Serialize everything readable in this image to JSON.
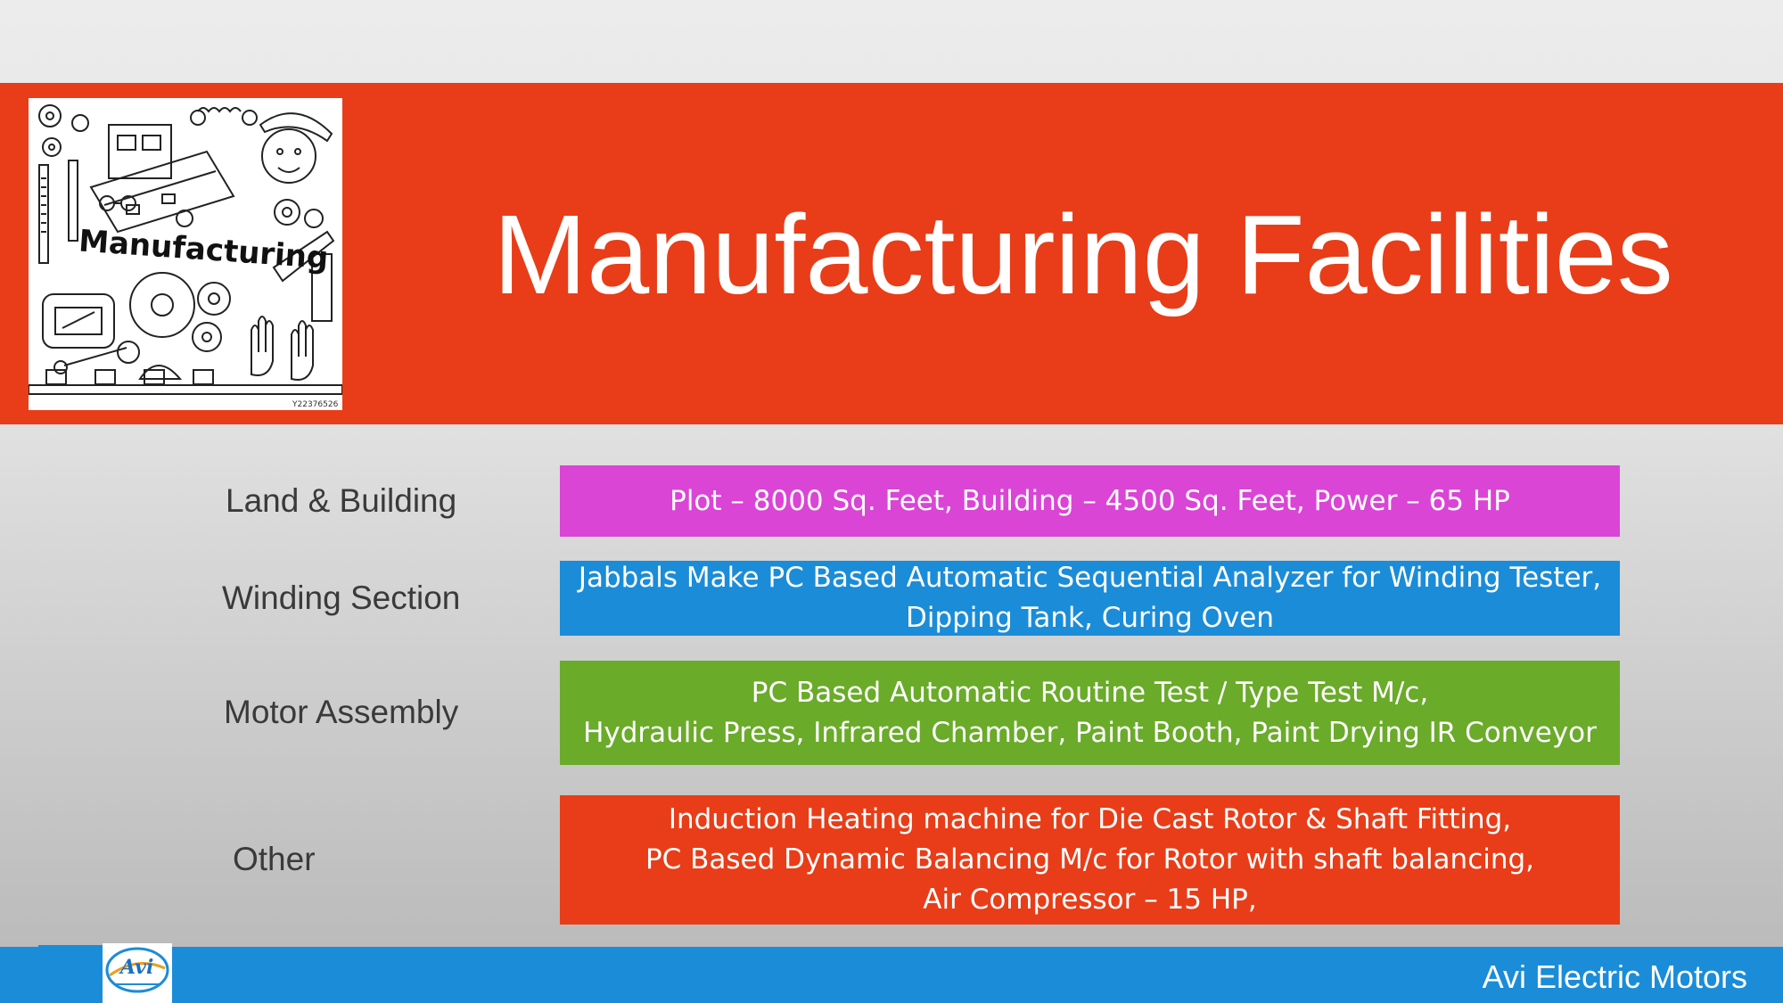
{
  "title": "Manufacturing Facilities",
  "clipart": {
    "icon": "manufacturing-doodle-clipart",
    "lettering": "Manufacturing",
    "stock_id": "Y22376526"
  },
  "rows": [
    {
      "label": "Land & Building",
      "lines": [
        "Plot – 8000 Sq. Feet, Building – 4500 Sq. Feet, Power – 65 HP"
      ],
      "color": "#da45d6"
    },
    {
      "label": "Winding Section",
      "lines": [
        "Jabbals Make PC Based Automatic Sequential Analyzer for Winding Tester,",
        "Dipping Tank, Curing Oven"
      ],
      "color": "#1b8cd8"
    },
    {
      "label": "Motor Assembly",
      "lines": [
        "PC Based Automatic Routine Test / Type Test M/c,",
        "Hydraulic Press, Infrared Chamber, Paint Booth, Paint Drying IR Conveyor"
      ],
      "color": "#6aab2a"
    },
    {
      "label": "Other",
      "lines": [
        "Induction Heating machine for Die Cast Rotor & Shaft Fitting,",
        "PC Based Dynamic Balancing M/c for Rotor with shaft balancing,",
        "Air Compressor – 15 HP,"
      ],
      "color": "#e83d18"
    }
  ],
  "footer": {
    "company": "Avi Electric Motors",
    "logo_icon": "avi-logo",
    "logo_text": "Avi"
  },
  "colors": {
    "banner": "#e83d18",
    "footer": "#1b8cd8"
  }
}
